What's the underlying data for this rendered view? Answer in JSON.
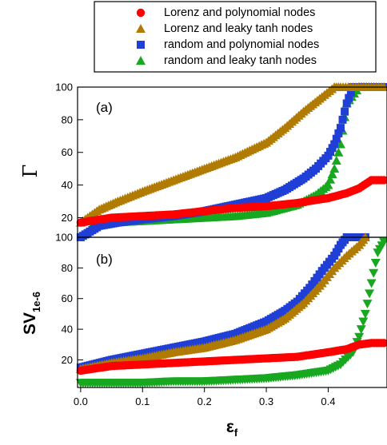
{
  "colors": {
    "lorenz_poly": "#ff0000",
    "lorenz_tanh": "#b07b00",
    "random_poly": "#1f3fd6",
    "random_tanh": "#17a81f"
  },
  "legend": {
    "placement": "top",
    "entries": [
      {
        "label": "Lorenz and polynomial nodes",
        "marker": "circle",
        "color": "#ff0000"
      },
      {
        "label": "Lorenz and leaky tanh nodes",
        "marker": "triangle-up",
        "color": "#b07b00"
      },
      {
        "label": "random and polynomial nodes",
        "marker": "square",
        "color": "#1f3fd6"
      },
      {
        "label": "random and leaky tanh nodes",
        "marker": "triangle-up",
        "color": "#17a81f"
      }
    ]
  },
  "chart_data": [
    {
      "panel": "(a)",
      "type": "scatter",
      "ylabel": "Γ",
      "xlim": [
        -0.005,
        0.495
      ],
      "ylim": [
        8,
        100
      ],
      "yticks": [
        20,
        40,
        60,
        80,
        100
      ],
      "grid": false,
      "series": [
        {
          "name": "Lorenz and polynomial nodes",
          "marker": "circle",
          "x": [
            0.0,
            0.05,
            0.1,
            0.15,
            0.2,
            0.25,
            0.3,
            0.35,
            0.4,
            0.43,
            0.45,
            0.47,
            0.49
          ],
          "y": [
            17,
            20,
            21,
            22,
            24,
            26,
            27,
            29,
            32,
            35,
            38,
            43,
            43
          ]
        },
        {
          "name": "Lorenz and leaky tanh nodes",
          "marker": "triangle-up",
          "x": [
            0.0,
            0.03,
            0.06,
            0.1,
            0.15,
            0.2,
            0.25,
            0.3,
            0.33,
            0.36,
            0.39,
            0.41,
            0.42,
            0.49
          ],
          "y": [
            17,
            25,
            30,
            36,
            43,
            50,
            57,
            66,
            75,
            85,
            94,
            100,
            100,
            100
          ]
        },
        {
          "name": "random and polynomial nodes",
          "marker": "square",
          "x": [
            0.0,
            0.03,
            0.06,
            0.1,
            0.15,
            0.2,
            0.25,
            0.3,
            0.33,
            0.36,
            0.38,
            0.4,
            0.41,
            0.42,
            0.43,
            0.44,
            0.45,
            0.49
          ],
          "y": [
            8,
            15,
            17,
            19,
            21,
            24,
            28,
            32,
            37,
            44,
            50,
            58,
            65,
            75,
            90,
            100,
            100,
            100
          ]
        },
        {
          "name": "random and leaky tanh nodes",
          "marker": "triangle-up",
          "x": [
            0.02,
            0.05,
            0.1,
            0.15,
            0.2,
            0.25,
            0.3,
            0.35,
            0.38,
            0.4,
            0.41,
            0.42,
            0.43,
            0.45,
            0.49
          ],
          "y": [
            16,
            17,
            18,
            19,
            20,
            21,
            23,
            28,
            34,
            40,
            50,
            65,
            90,
            100,
            100
          ]
        }
      ]
    },
    {
      "panel": "(b)",
      "type": "scatter",
      "ylabel": "SV",
      "ylabel_subscript": "1e-6",
      "xlabel": "ε",
      "xlabel_subscript": "f",
      "xlim": [
        -0.005,
        0.495
      ],
      "ylim": [
        2,
        100
      ],
      "yticks": [
        20,
        40,
        60,
        80,
        100
      ],
      "xticks": [
        0.0,
        0.1,
        0.2,
        0.3,
        0.4
      ],
      "xtick_labels": [
        "0.0",
        "0.1",
        "0.2",
        "0.3",
        "0.4"
      ],
      "grid": false,
      "series": [
        {
          "name": "Lorenz and polynomial nodes",
          "marker": "circle",
          "x": [
            0.0,
            0.05,
            0.1,
            0.15,
            0.2,
            0.25,
            0.3,
            0.35,
            0.4,
            0.43,
            0.45,
            0.47,
            0.49
          ],
          "y": [
            13,
            16,
            17,
            18,
            19,
            20,
            21,
            22,
            25,
            27,
            30,
            31,
            31
          ]
        },
        {
          "name": "Lorenz and leaky tanh nodes",
          "marker": "triangle-up",
          "x": [
            0.0,
            0.05,
            0.1,
            0.15,
            0.2,
            0.25,
            0.3,
            0.33,
            0.36,
            0.39,
            0.41,
            0.43,
            0.45,
            0.46
          ],
          "y": [
            14,
            18,
            21,
            25,
            28,
            33,
            40,
            47,
            57,
            70,
            80,
            88,
            95,
            100
          ]
        },
        {
          "name": "random and polynomial nodes",
          "marker": "square",
          "x": [
            0.0,
            0.05,
            0.1,
            0.15,
            0.2,
            0.25,
            0.3,
            0.33,
            0.35,
            0.37,
            0.39,
            0.41,
            0.42,
            0.43,
            0.45,
            0.46
          ],
          "y": [
            15,
            20,
            24,
            28,
            32,
            37,
            45,
            52,
            58,
            67,
            78,
            88,
            95,
            100,
            100,
            100
          ]
        },
        {
          "name": "random and leaky tanh nodes",
          "marker": "triangle-down",
          "x": [
            0.0,
            0.05,
            0.1,
            0.15,
            0.2,
            0.25,
            0.3,
            0.35,
            0.4,
            0.42,
            0.44,
            0.45,
            0.46,
            0.47,
            0.48,
            0.49
          ],
          "y": [
            5,
            5,
            5,
            6,
            6,
            7,
            8,
            10,
            13,
            17,
            25,
            35,
            50,
            70,
            90,
            97
          ]
        }
      ]
    }
  ]
}
